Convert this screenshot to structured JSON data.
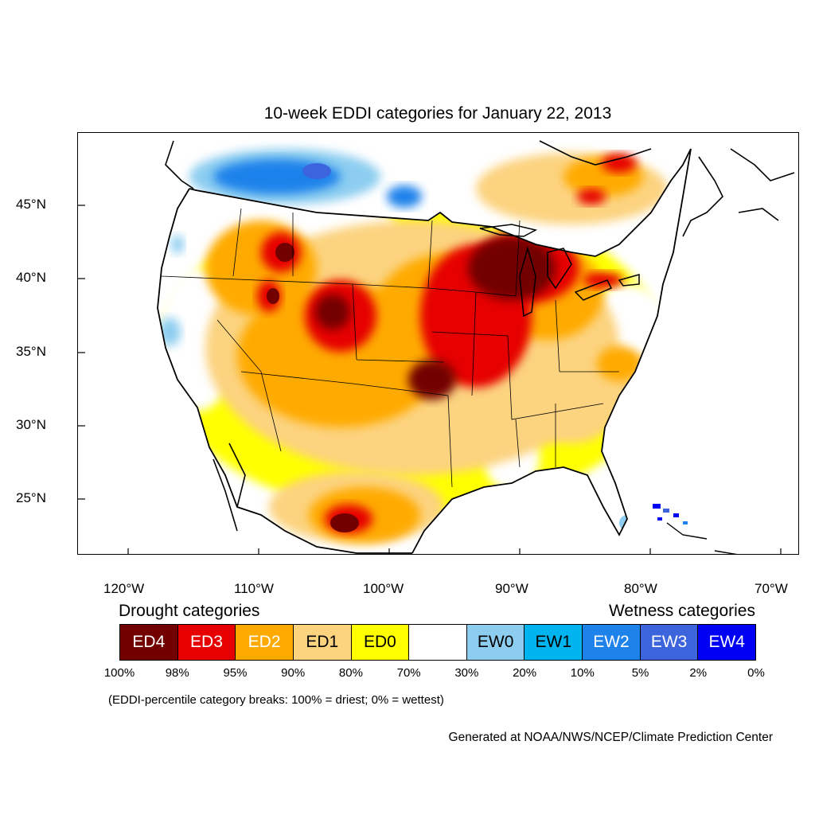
{
  "title": "10-week EDDI categories for January 22, 2013",
  "lat_labels": [
    "45°N",
    "40°N",
    "35°N",
    "30°N",
    "25°N"
  ],
  "lon_labels": [
    "120°W",
    "110°W",
    "100°W",
    "90°W",
    "80°W",
    "70°W"
  ],
  "legend": {
    "drought_heading": "Drought categories",
    "wetness_heading": "Wetness categories",
    "categories": [
      {
        "label": "ED4",
        "color": "#730000",
        "text_color": "#ffffff"
      },
      {
        "label": "ED3",
        "color": "#e60000",
        "text_color": "#ffffff"
      },
      {
        "label": "ED2",
        "color": "#ffaa00",
        "text_color": "#ffffff"
      },
      {
        "label": "ED1",
        "color": "#fcd37f",
        "text_color": "#000000"
      },
      {
        "label": "ED0",
        "color": "#ffff00",
        "text_color": "#000000"
      },
      {
        "label": "",
        "color": "#ffffff",
        "text_color": "#000000"
      },
      {
        "label": "EW0",
        "color": "#8ccdf0",
        "text_color": "#000000"
      },
      {
        "label": "EW1",
        "color": "#00b4f0",
        "text_color": "#000000"
      },
      {
        "label": "EW2",
        "color": "#1e82eb",
        "text_color": "#ffffff"
      },
      {
        "label": "EW3",
        "color": "#3c64dc",
        "text_color": "#ffffff"
      },
      {
        "label": "EW4",
        "color": "#0000f5",
        "text_color": "#ffffff"
      }
    ],
    "percent_breaks": [
      "100%",
      "98%",
      "95%",
      "90%",
      "80%",
      "70%",
      "30%",
      "20%",
      "10%",
      "5%",
      "2%",
      "0%"
    ],
    "breaks_note": "(EDDI-percentile category breaks: 100% = driest; 0% = wettest)"
  },
  "credit": "Generated at NOAA/NWS/NCEP/Climate Prediction Center"
}
